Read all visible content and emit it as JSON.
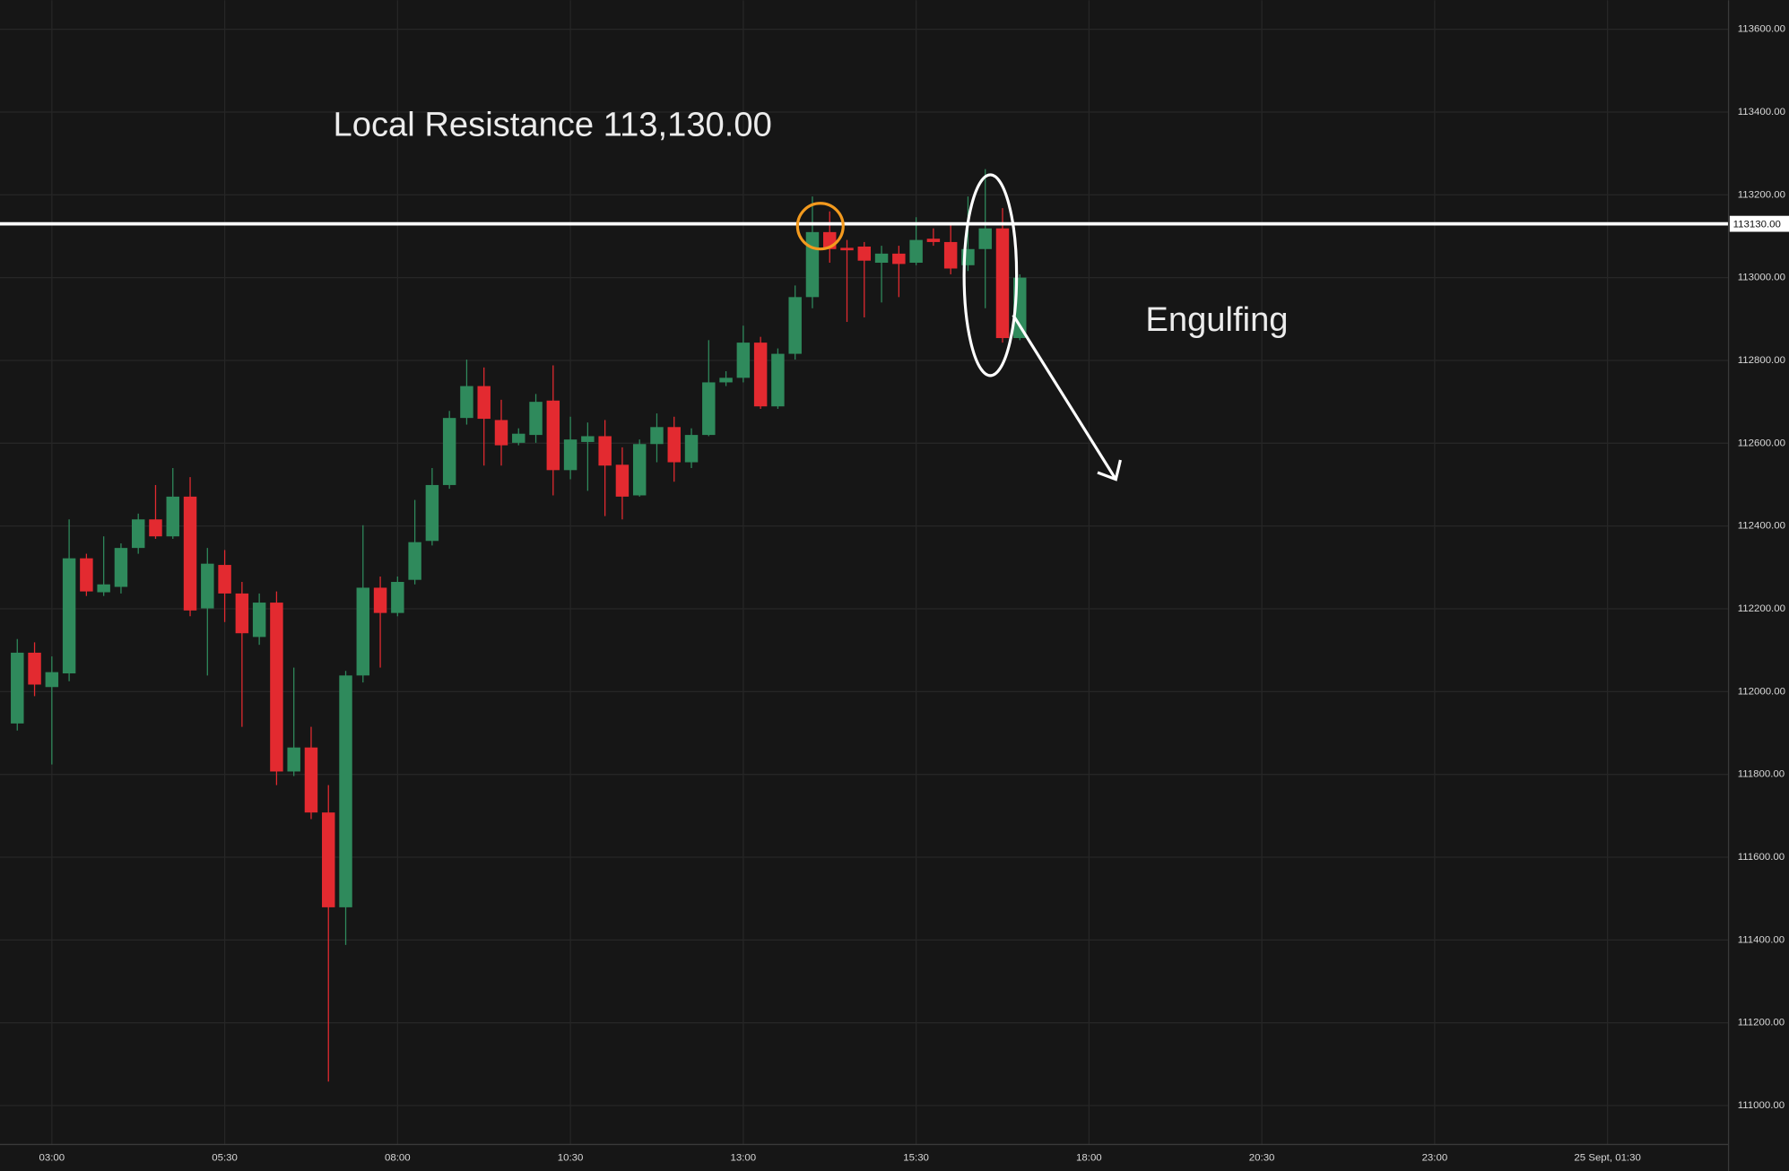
{
  "chart_data": {
    "type": "candlestick",
    "title": "Local Resistance 113,130.00",
    "annotation": "Engulfing",
    "up_color": "#2f8a5c",
    "down_color": "#e32a30",
    "resistance": {
      "value": 113130,
      "label": "113130.00"
    },
    "resistance_color": "#ffffff",
    "grid": true,
    "open": [
      111923,
      112094,
      112011,
      112044,
      112322,
      112240,
      112253,
      112347,
      112416,
      112375,
      112471,
      112201,
      112306,
      112237,
      112132,
      112215,
      111807,
      111865,
      111708,
      111479,
      112039,
      112251,
      112190,
      112270,
      112364,
      112499,
      112661,
      112738,
      112656,
      112601,
      112620,
      112703,
      112535,
      112603,
      112617,
      112548,
      112474,
      112598,
      112639,
      112554,
      112620,
      112747,
      112758,
      112843,
      112689,
      112816,
      112953,
      113110,
      113072,
      113075,
      113036,
      113058,
      113036,
      113094,
      113086,
      113030,
      113069,
      113119,
      112854
    ],
    "high": [
      112127,
      112119,
      112085,
      112416,
      112333,
      112375,
      112358,
      112430,
      112499,
      112540,
      112518,
      112347,
      112342,
      112265,
      112237,
      112242,
      112058,
      111915,
      111774,
      112050,
      112402,
      112278,
      112278,
      112463,
      112540,
      112678,
      112802,
      112783,
      112705,
      112636,
      112719,
      112788,
      112664,
      112650,
      112656,
      112590,
      112609,
      112672,
      112664,
      112636,
      112849,
      112774,
      112884,
      112857,
      112829,
      112981,
      113196,
      113160,
      113091,
      113086,
      113077,
      113077,
      113146,
      113119,
      113132,
      113196,
      113262,
      113168,
      113008
    ],
    "low": [
      111906,
      111989,
      111824,
      112025,
      112231,
      112231,
      112237,
      112333,
      112369,
      112369,
      112182,
      112039,
      112168,
      111915,
      112113,
      111774,
      111796,
      111692,
      111058,
      111388,
      112022,
      112058,
      112182,
      112259,
      112353,
      112490,
      112645,
      112546,
      112546,
      112595,
      112601,
      112474,
      112513,
      112485,
      112424,
      112416,
      112471,
      112554,
      112507,
      112540,
      112617,
      112738,
      112747,
      112683,
      112683,
      112802,
      112926,
      113036,
      112893,
      112904,
      112940,
      112953,
      113030,
      113077,
      113008,
      113016,
      112926,
      112843,
      112849
    ],
    "close": [
      112094,
      112017,
      112047,
      112322,
      112242,
      112259,
      112347,
      112416,
      112375,
      112471,
      112196,
      112309,
      112237,
      112141,
      112215,
      111807,
      111865,
      111708,
      111479,
      112039,
      112251,
      112190,
      112265,
      112361,
      112499,
      112661,
      112738,
      112659,
      112595,
      112623,
      112700,
      112535,
      112609,
      112617,
      112546,
      112471,
      112598,
      112639,
      112554,
      112620,
      112747,
      112758,
      112843,
      112689,
      112816,
      112953,
      113110,
      113069,
      113066,
      113041,
      113058,
      113033,
      113091,
      113086,
      113022,
      113069,
      113119,
      112854,
      113000
    ],
    "xlim": [
      -1,
      99
    ],
    "xticks": [
      {
        "value": 2,
        "label": "03:00"
      },
      {
        "value": 12,
        "label": "05:30"
      },
      {
        "value": 22,
        "label": "08:00"
      },
      {
        "value": 32,
        "label": "10:30"
      },
      {
        "value": 42,
        "label": "13:00"
      },
      {
        "value": 52,
        "label": "15:30"
      },
      {
        "value": 62,
        "label": "18:00"
      },
      {
        "value": 72,
        "label": "20:30"
      },
      {
        "value": 82,
        "label": "23:00"
      },
      {
        "value": 92,
        "label": "25 Sept, 01:30"
      }
    ],
    "ylim": [
      110906,
      113670
    ],
    "yticks": [
      {
        "value": 111000,
        "label": "111000.00"
      },
      {
        "value": 111200,
        "label": "111200.00"
      },
      {
        "value": 111400,
        "label": "111400.00"
      },
      {
        "value": 111600,
        "label": "111600.00"
      },
      {
        "value": 111800,
        "label": "111800.00"
      },
      {
        "value": 112000,
        "label": "112000.00"
      },
      {
        "value": 112200,
        "label": "112200.00"
      },
      {
        "value": 112400,
        "label": "112400.00"
      },
      {
        "value": 112600,
        "label": "112600.00"
      },
      {
        "value": 112800,
        "label": "112800.00"
      },
      {
        "value": 113000,
        "label": "113000.00"
      },
      {
        "value": 113200,
        "label": "113200.00"
      },
      {
        "value": 113400,
        "label": "113400.00"
      },
      {
        "value": 113600,
        "label": "113600.00"
      }
    ]
  }
}
